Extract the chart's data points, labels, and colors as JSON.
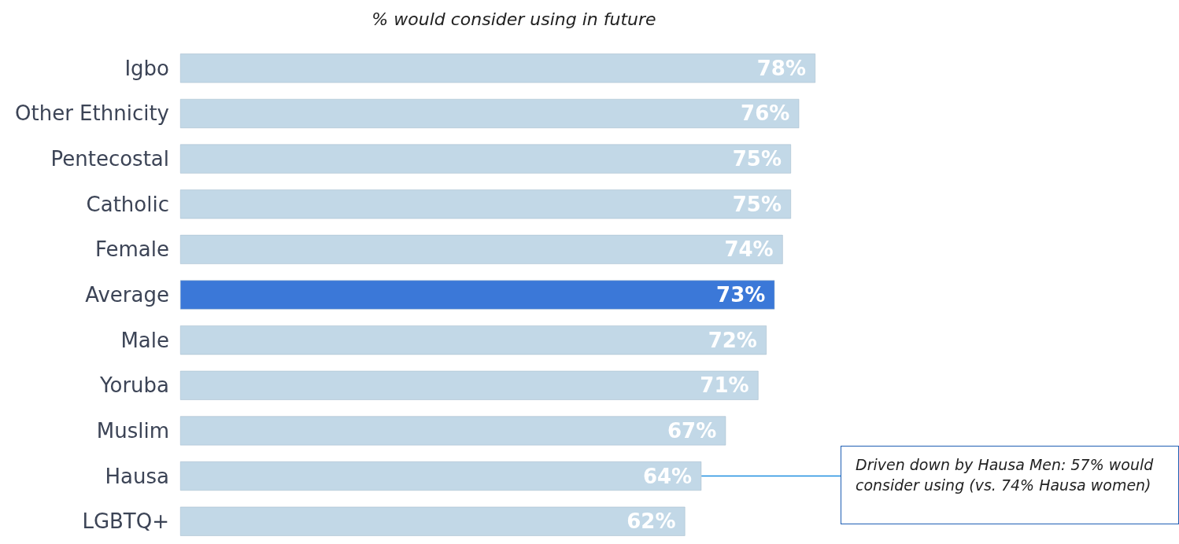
{
  "chart_data": {
    "type": "bar",
    "orientation": "horizontal",
    "title": "% would consider using in future",
    "categories": [
      "Igbo",
      "Other Ethnicity",
      "Pentecostal",
      "Catholic",
      "Female",
      "Average",
      "Male",
      "Yoruba",
      "Muslim",
      "Hausa",
      "LGBTQ+"
    ],
    "values": [
      78,
      76,
      75,
      75,
      74,
      73,
      72,
      71,
      67,
      64,
      62
    ],
    "colors": [
      "#c2d8e7",
      "#c2d8e7",
      "#c2d8e7",
      "#c2d8e7",
      "#c2d8e7",
      "#3b78d8",
      "#c2d8e7",
      "#c2d8e7",
      "#c2d8e7",
      "#c2d8e7",
      "#c2d8e7"
    ],
    "value_labels": [
      "78%",
      "76%",
      "75%",
      "75%",
      "74%",
      "73%",
      "72%",
      "71%",
      "67%",
      "64%",
      "62%"
    ],
    "grid": false,
    "tick_labels": "y",
    "annotations": [
      {
        "text": "Driven down by Hausa Men: 57% would consider using (vs. 74% Hausa women)",
        "x": 64,
        "y": "Hausa"
      }
    ]
  }
}
